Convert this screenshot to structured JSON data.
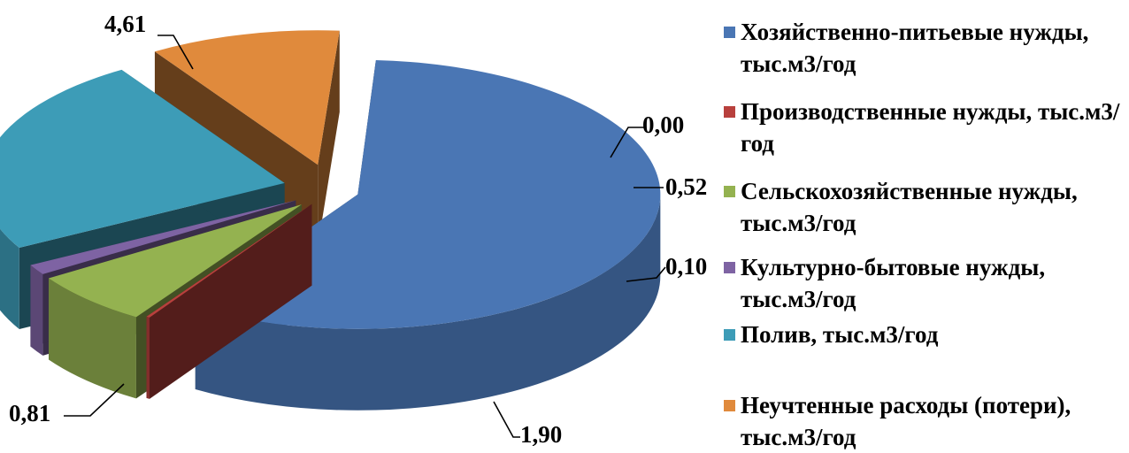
{
  "chart_data": {
    "type": "pie",
    "variant": "3d-exploded",
    "series": [
      {
        "name": "Хозяйственно-питьевые нужды, тыс.м3/год",
        "value": 4.61,
        "label": "4,61",
        "color": "#4a76b4"
      },
      {
        "name": "Производственные нужды, тыс.м3/год",
        "value": 0.0,
        "label": "0,00",
        "color": "#b8403d"
      },
      {
        "name": "Сельскохозяйственные нужды, тыс.м3/год",
        "value": 0.52,
        "label": "0,52",
        "color": "#94b250"
      },
      {
        "name": "Культурно-бытовые нужды, тыс.м3/год",
        "value": 0.1,
        "label": "0,10",
        "color": "#7e63a3"
      },
      {
        "name": "Полив, тыс.м3/год",
        "value": 1.9,
        "label": "1,90",
        "color": "#3d9cb7"
      },
      {
        "name": "Неучтенные расходы (потери), тыс.м3/год",
        "value": 0.81,
        "label": "0,81",
        "color": "#e08a3c"
      }
    ],
    "legend": {
      "position": "right",
      "entries": [
        "Хозяйственно-питьевые нужды, тыс.м3/год",
        "Производственные нужды, тыс.м3/год",
        "Сельскохозяйственные нужды, тыс.м3/год",
        "Культурно-бытовые нужды, тыс.м3/год",
        "Полив, тыс.м3/год",
        "Неучтенные расходы (потери), тыс.м3/год"
      ]
    }
  }
}
